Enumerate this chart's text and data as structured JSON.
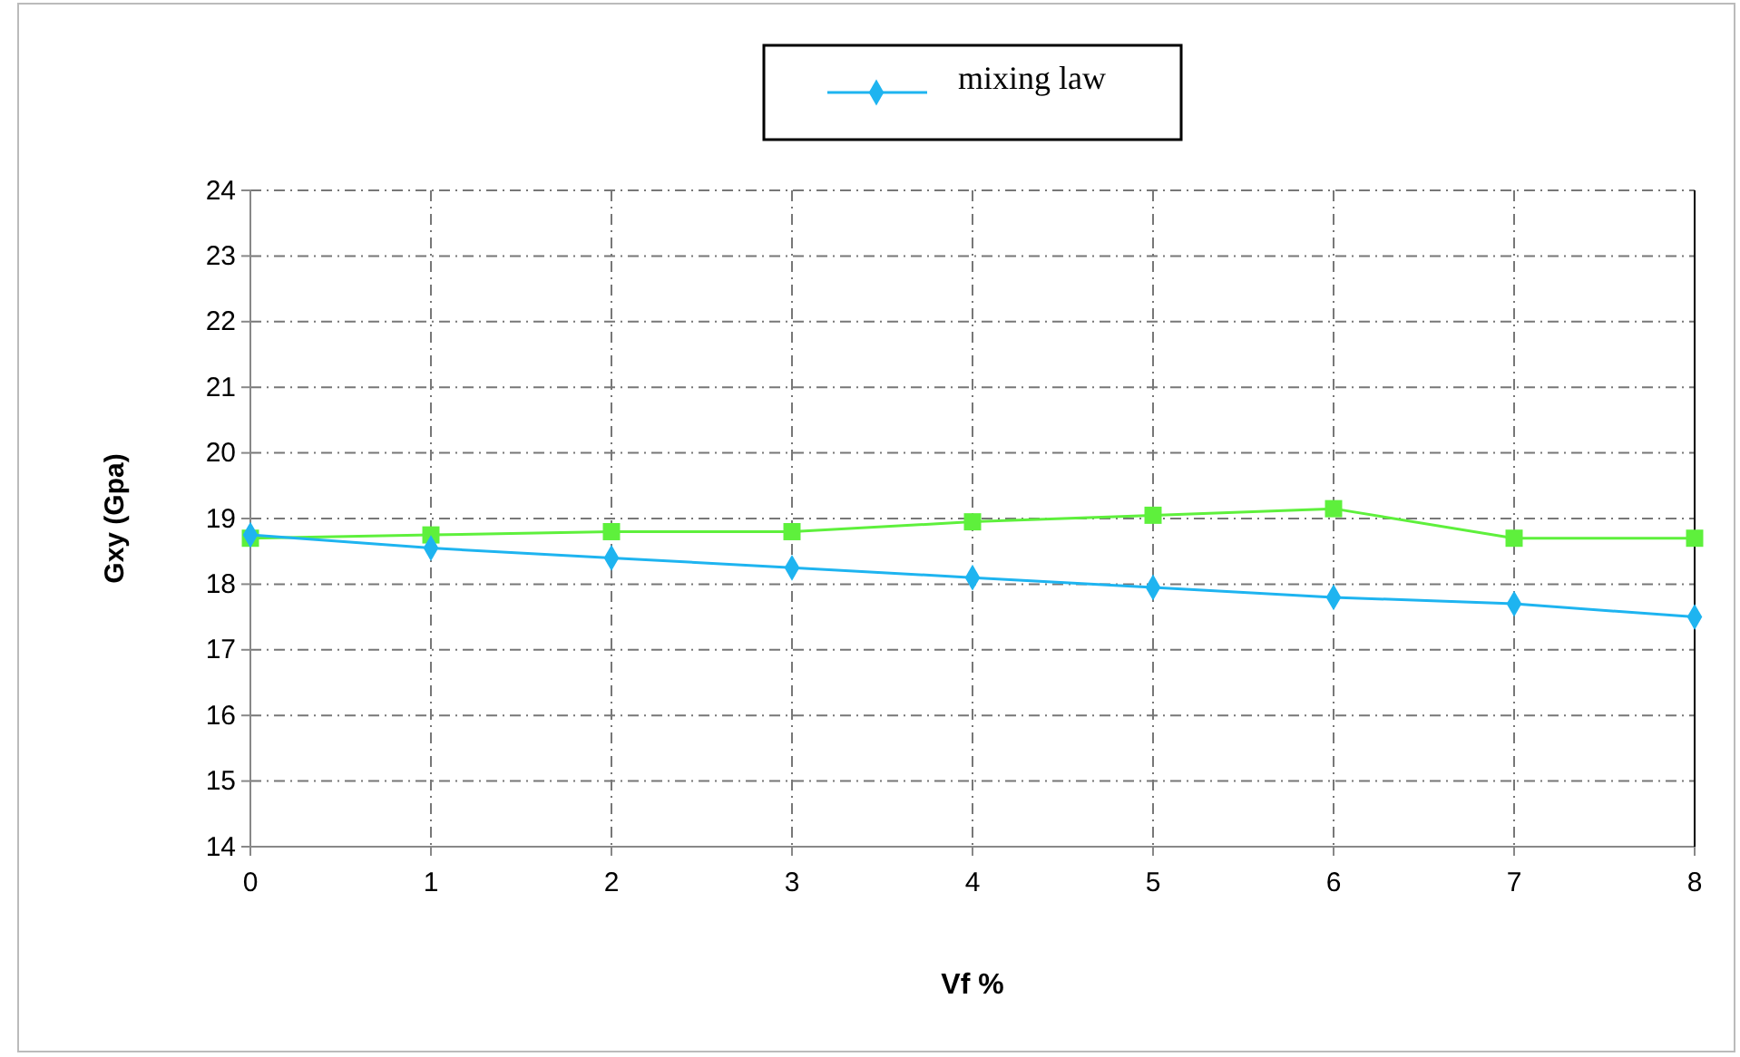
{
  "chart_data": {
    "type": "line",
    "xlabel": "Vf %",
    "ylabel": "Gxy (Gpa)",
    "x": [
      0,
      1,
      2,
      3,
      4,
      5,
      6,
      7,
      8
    ],
    "series": [
      {
        "name": "mixing law",
        "color": "#1eb4f0",
        "marker": "diamond",
        "values": [
          18.75,
          18.55,
          18.4,
          18.25,
          18.1,
          17.95,
          17.8,
          17.7,
          17.5
        ]
      },
      {
        "color": "#5ef03c",
        "marker": "square",
        "values": [
          18.7,
          18.75,
          18.8,
          18.8,
          18.95,
          19.05,
          19.15,
          18.7,
          18.7
        ]
      }
    ],
    "xlim": [
      0,
      8
    ],
    "xticks": [
      0,
      1,
      2,
      3,
      4,
      5,
      6,
      7,
      8
    ],
    "ylim": [
      14,
      24
    ],
    "yticks": [
      14,
      15,
      16,
      17,
      18,
      19,
      20,
      21,
      22,
      23,
      24
    ],
    "grid": true,
    "legend": "top",
    "line_style": "solid"
  }
}
